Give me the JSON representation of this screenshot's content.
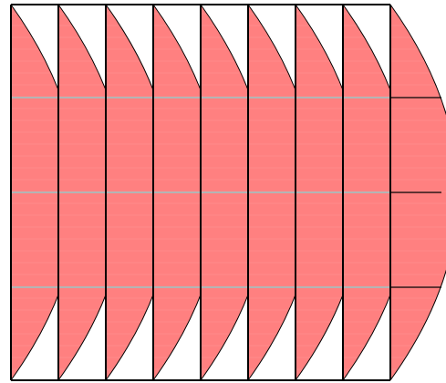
{
  "diagram": {
    "columns": 9,
    "rows": 4,
    "colors": {
      "lens_fill": "#ff8080",
      "overlap_fill": "#ff3b3b",
      "outline": "#000000",
      "background": "#ffffff",
      "grid_line": "#b4b4b4",
      "stripe": "#ffa6a6"
    }
  }
}
